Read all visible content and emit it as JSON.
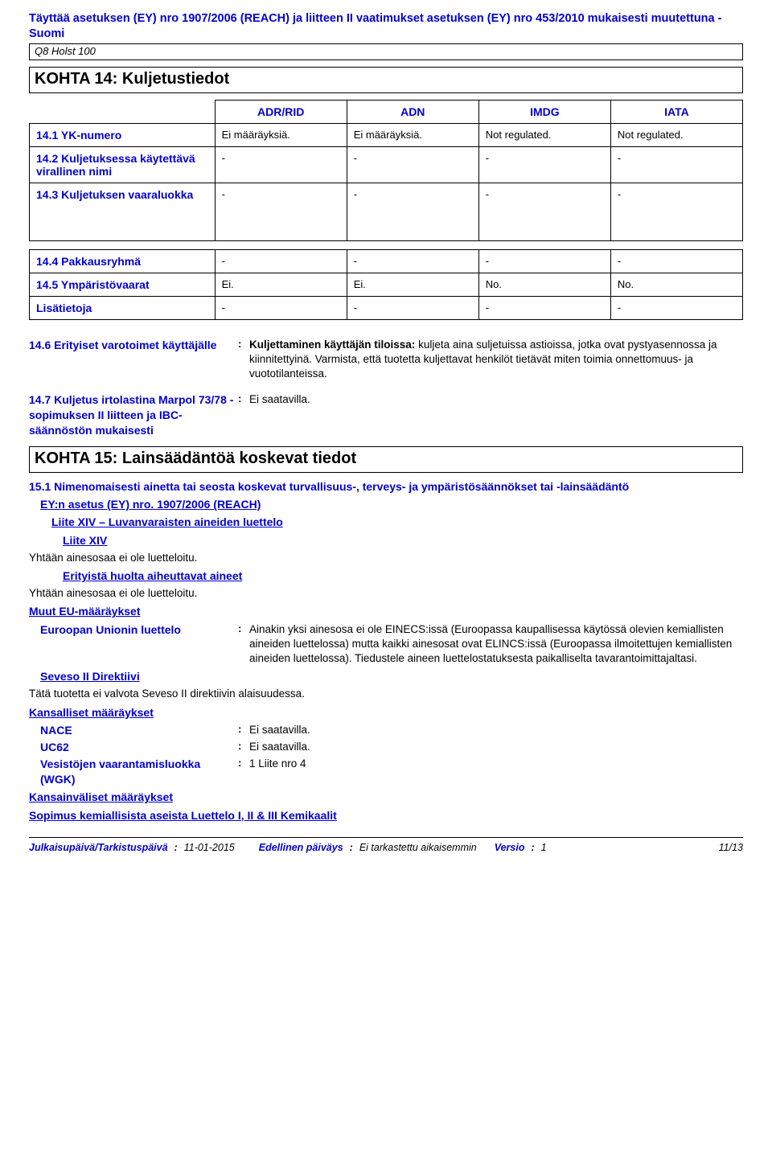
{
  "header": {
    "compliance": "Täyttää asetuksen (EY) nro 1907/2006 (REACH) ja liitteen II vaatimukset asetuksen (EY) nro 453/2010 mukaisesti muutettuna - Suomi",
    "product": "Q8 Holst 100"
  },
  "section14": {
    "title": "KOHTA 14: Kuljetustiedot",
    "column_widths": [
      "26%",
      "18.5%",
      "18.5%",
      "18.5%",
      "18.5%"
    ],
    "head": [
      "ADR/RID",
      "ADN",
      "IMDG",
      "IATA"
    ],
    "table1_rows": [
      {
        "label": "14.1 YK-numero",
        "cells": [
          "Ei määräyksiä.",
          "Ei määräyksiä.",
          "Not regulated.",
          "Not regulated."
        ]
      },
      {
        "label": "14.2 Kuljetuksessa käytettävä virallinen nimi",
        "cells": [
          "-",
          "-",
          "-",
          "-"
        ]
      },
      {
        "label": "14.3 Kuljetuksen vaaraluokka",
        "cells": [
          "-",
          "-",
          "-",
          "-"
        ],
        "tall": true
      }
    ],
    "table2_rows": [
      {
        "label": "14.4 Pakkausryhmä",
        "cells": [
          "-",
          "-",
          "-",
          "-"
        ]
      },
      {
        "label": "14.5 Ympäristövaarat",
        "cells": [
          "Ei.",
          "Ei.",
          "No.",
          "No."
        ]
      },
      {
        "label": "Lisätietoja",
        "cells": [
          "-",
          "-",
          "-",
          "-"
        ]
      }
    ],
    "kv": [
      {
        "label": "14.6 Erityiset varotoimet käyttäjälle",
        "lead": "Kuljettaminen käyttäjän tiloissa:",
        "value_rest": " kuljeta aina suljetuissa astioissa, jotka ovat pystyasennossa ja kiinnitettyinä. Varmista, että tuotetta kuljettavat henkilöt tietävät miten toimia onnettomuus- ja vuototilanteissa."
      },
      {
        "label": "14.7 Kuljetus irtolastina Marpol 73/78 -sopimuksen II liitteen ja IBC-säännöstön mukaisesti",
        "value": "Ei saatavilla."
      }
    ]
  },
  "section15": {
    "title": "KOHTA 15: Lainsäädäntöä koskevat tiedot",
    "sub1": "15.1 Nimenomaisesti ainetta tai seosta koskevat turvallisuus-, terveys- ja ympäristösäännökset tai -lainsäädäntö",
    "reach": "EY:n asetus (EY) nro. 1907/2006 (REACH)",
    "annexXIVlist": "Liite XIV – Luvanvaraisten aineiden luettelo",
    "annexXIV": "Liite XIV",
    "none_listed": "Yhtään ainesosaa ei ole luetteloitu.",
    "svhc": "Erityistä huolta aiheuttavat aineet",
    "other_eu": "Muut EU-määräykset",
    "eu_list_label": "Euroopan Unionin luettelo",
    "eu_list_value": "Ainakin yksi ainesosa ei ole EINECS:issä (Euroopassa kaupallisessa käytössä olevien kemiallisten aineiden luettelossa) mutta kaikki ainesosat ovat ELINCS:issä (Euroopassa ilmoitettujen kemiallisten aineiden luettelossa). Tiedustele aineen luettelostatuksesta paikalliselta tavarantoimittajaltasi.",
    "seveso": "Seveso II Direktiivi",
    "seveso_value": "Tätä tuotetta ei valvota Seveso II direktiivin alaisuudessa.",
    "national": "Kansalliset määräykset",
    "nace_label": "NACE",
    "nace_value": "Ei saatavilla.",
    "uc62_label": "UC62",
    "uc62_value": "Ei saatavilla.",
    "wgk_label": "Vesistöjen vaarantamisluokka (WGK)",
    "wgk_value": "1 Liite nro 4",
    "intl": "Kansainväliset määräykset",
    "cwc": "Sopimus kemiallisista aseista Luettelo I, II & III Kemikaalit"
  },
  "footer": {
    "l1": "Julkaisupäivä/Tarkistuspäivä",
    "v1": "11-01-2015",
    "l2": "Edellinen päiväys",
    "v2": "Ei tarkastettu aikaisemmin",
    "l3": "Versio",
    "v3": "1",
    "page": "11/13"
  }
}
